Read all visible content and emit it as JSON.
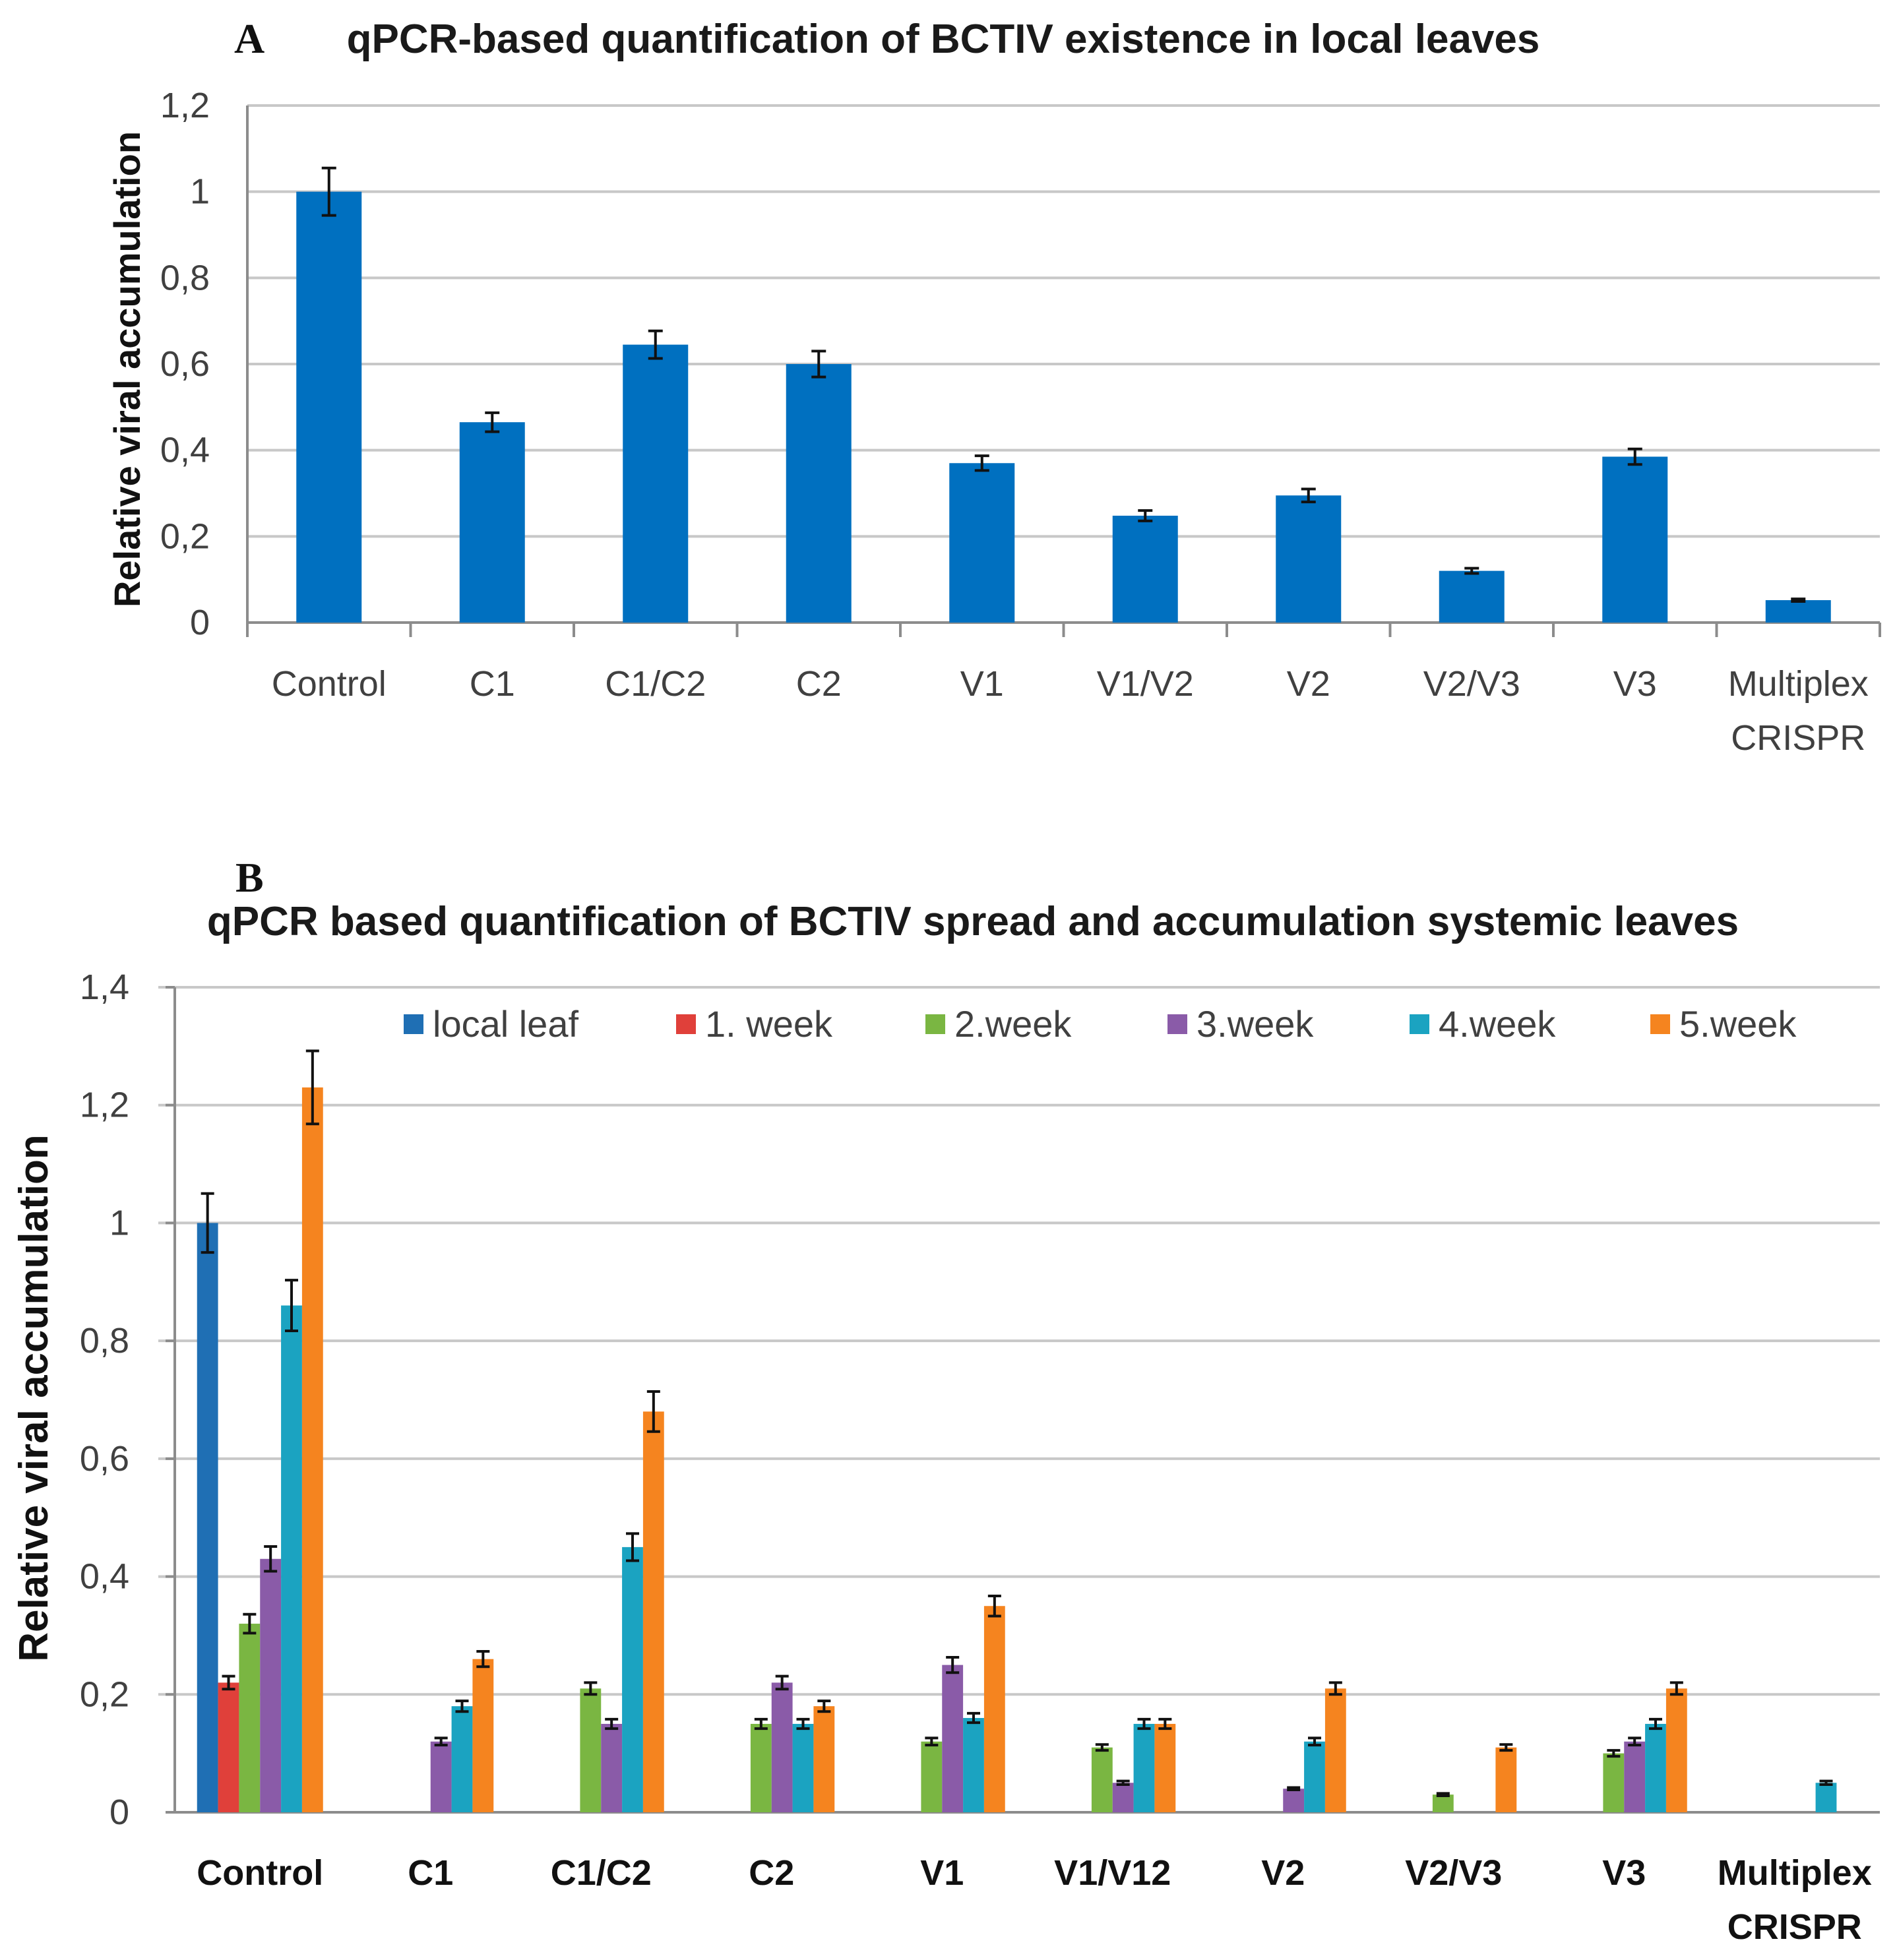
{
  "chart_data": [
    {
      "type": "bar",
      "panel": "A",
      "title": "qPCR-based quantification of BCTIV existence in local leaves",
      "xlabel": "",
      "ylabel": "Relative viral accumulation",
      "ylim": [
        0,
        1.2
      ],
      "yticks": [
        "0",
        "0,2",
        "0,4",
        "0,6",
        "0,8",
        "1",
        "1,2"
      ],
      "ytick_values": [
        0,
        0.2,
        0.4,
        0.6,
        0.8,
        1.0,
        1.2
      ],
      "grid": true,
      "categories": [
        "Control",
        "C1",
        "C1/C2",
        "C2",
        "V1",
        "V1/V2",
        "V2",
        "V2/V3",
        "V3",
        "Multiplex CRISPR"
      ],
      "category_lines": [
        [
          "Control"
        ],
        [
          "C1"
        ],
        [
          "C1/C2"
        ],
        [
          "C2"
        ],
        [
          "V1"
        ],
        [
          "V1/V2"
        ],
        [
          "V2"
        ],
        [
          "V2/V3"
        ],
        [
          "V3"
        ],
        [
          "Multiplex",
          "CRISPR"
        ]
      ],
      "series": [
        {
          "name": "Relative viral accumulation",
          "color": "#0070c0",
          "values": [
            1.0,
            0.465,
            0.645,
            0.6,
            0.37,
            0.248,
            0.295,
            0.12,
            0.385,
            0.052
          ],
          "errors": [
            0.055,
            0.022,
            0.032,
            0.03,
            0.017,
            0.012,
            0.015,
            0.006,
            0.018,
            0.003
          ]
        }
      ]
    },
    {
      "type": "bar",
      "panel": "B",
      "title": "qPCR based quantification of BCTIV spread and accumulation  systemic leaves",
      "xlabel": "",
      "ylabel": "Relative viral  accumulation",
      "ylim": [
        0,
        1.4
      ],
      "yticks": [
        "0",
        "0,2",
        "0,4",
        "0,6",
        "0,8",
        "1",
        "1,2",
        "1,4"
      ],
      "ytick_values": [
        0,
        0.2,
        0.4,
        0.6,
        0.8,
        1.0,
        1.2,
        1.4
      ],
      "grid": true,
      "legend_position": "top",
      "categories": [
        "Control",
        "C1",
        "C1/C2",
        "C2",
        "V1",
        "V1/V12",
        "V2",
        "V2/V3",
        "V3",
        "Multiplex CRISPR"
      ],
      "category_lines": [
        [
          "Control"
        ],
        [
          "C1"
        ],
        [
          "C1/C2"
        ],
        [
          "C2"
        ],
        [
          "V1"
        ],
        [
          "V1/V12"
        ],
        [
          "V2"
        ],
        [
          "V2/V3"
        ],
        [
          "V3"
        ],
        [
          "Multiplex",
          "CRISPR"
        ]
      ],
      "series": [
        {
          "name": "local leaf",
          "color": "#1f6fb4",
          "values": [
            1.0,
            0,
            0,
            0,
            0,
            0,
            0,
            0,
            0,
            0
          ],
          "errors": [
            0.05,
            0,
            0,
            0,
            0,
            0,
            0,
            0,
            0,
            0
          ]
        },
        {
          "name": "1. week",
          "color": "#e0403a",
          "values": [
            0.22,
            0,
            0,
            0,
            0,
            0,
            0,
            0,
            0,
            0
          ],
          "errors": [
            0.011,
            0,
            0,
            0,
            0,
            0,
            0,
            0,
            0,
            0
          ]
        },
        {
          "name": "2.week",
          "color": "#7ab642",
          "values": [
            0.32,
            0,
            0.21,
            0.15,
            0.12,
            0.11,
            0,
            0.03,
            0.1,
            0
          ],
          "errors": [
            0.016,
            0,
            0.01,
            0.008,
            0.006,
            0.005,
            0,
            0.002,
            0.005,
            0
          ]
        },
        {
          "name": "3.week",
          "color": "#8a5ba8",
          "values": [
            0.43,
            0.12,
            0.15,
            0.22,
            0.25,
            0.05,
            0.04,
            0,
            0.12,
            0
          ],
          "errors": [
            0.021,
            0.006,
            0.008,
            0.011,
            0.013,
            0.003,
            0.002,
            0,
            0.006,
            0
          ]
        },
        {
          "name": "4.week",
          "color": "#1ba3c1",
          "values": [
            0.86,
            0.18,
            0.45,
            0.15,
            0.16,
            0.15,
            0.12,
            0,
            0.15,
            0.05
          ],
          "errors": [
            0.043,
            0.009,
            0.023,
            0.008,
            0.008,
            0.008,
            0.006,
            0,
            0.008,
            0.003
          ]
        },
        {
          "name": "5.week",
          "color": "#f5841f",
          "values": [
            1.23,
            0.26,
            0.68,
            0.18,
            0.35,
            0.15,
            0.21,
            0.11,
            0.21,
            0
          ],
          "errors": [
            0.062,
            0.013,
            0.034,
            0.009,
            0.017,
            0.008,
            0.01,
            0.005,
            0.01,
            0
          ]
        }
      ]
    }
  ]
}
